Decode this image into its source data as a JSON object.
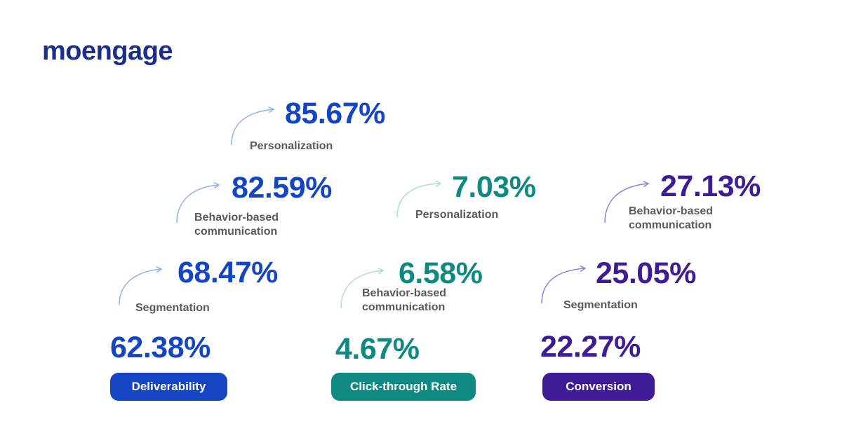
{
  "brand": {
    "logo_text": "moengage"
  },
  "colors": {
    "blue": "#1446c4",
    "teal": "#0f8a82",
    "purple": "#3e1c96"
  },
  "columns": [
    {
      "category": "Deliverability",
      "base": "62.38%",
      "steps": [
        {
          "label": "Segmentation",
          "value": "68.47%"
        },
        {
          "label": "Behavior-based communication",
          "line1": "Behavior-based",
          "line2": "communication",
          "value": "82.59%"
        },
        {
          "label": "Personalization",
          "value": "85.67%"
        }
      ]
    },
    {
      "category": "Click-through Rate",
      "base": "4.67%",
      "steps": [
        {
          "label": "Behavior-based communication",
          "line1": "Behavior-based",
          "line2": "communication",
          "value": "6.58%"
        },
        {
          "label": "Personalization",
          "value": "7.03%"
        }
      ]
    },
    {
      "category": "Conversion",
      "base": "22.27%",
      "steps": [
        {
          "label": "Segmentation",
          "value": "25.05%"
        },
        {
          "label": "Behavior-based communication",
          "line1": "Behavior-based",
          "line2": "communication",
          "value": "27.13%"
        }
      ]
    }
  ]
}
